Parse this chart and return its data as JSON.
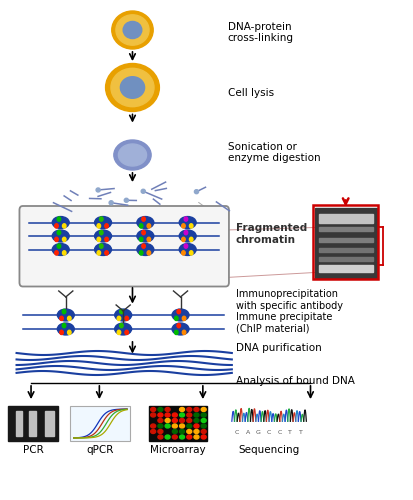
{
  "bg_color": "#ffffff",
  "labels": {
    "dna_protein": "DNA-protein\ncross-linking",
    "cell_lysis": "Cell lysis",
    "sonication": "Sonication or\nenzyme digestion",
    "fragmented": "Fragmented\nchromatin",
    "immunoprecip": "Immunoprecipitation\nwith specific antibody",
    "immune_precip": "Immune precipitate\n(ChIP material)",
    "dna_purif": "DNA purification",
    "analysis": "Analysis of bound DNA",
    "pcr": "PCR",
    "qpcr": "qPCR",
    "microarray": "Microarray",
    "sequencing": "Sequencing"
  },
  "cell_outer_color": "#e8a000",
  "cell_inner_color": "#7090c0",
  "dna_color": "#1a3fa0",
  "red_color": "#cc0000",
  "dark_color": "#222222",
  "gray_color": "#888888"
}
